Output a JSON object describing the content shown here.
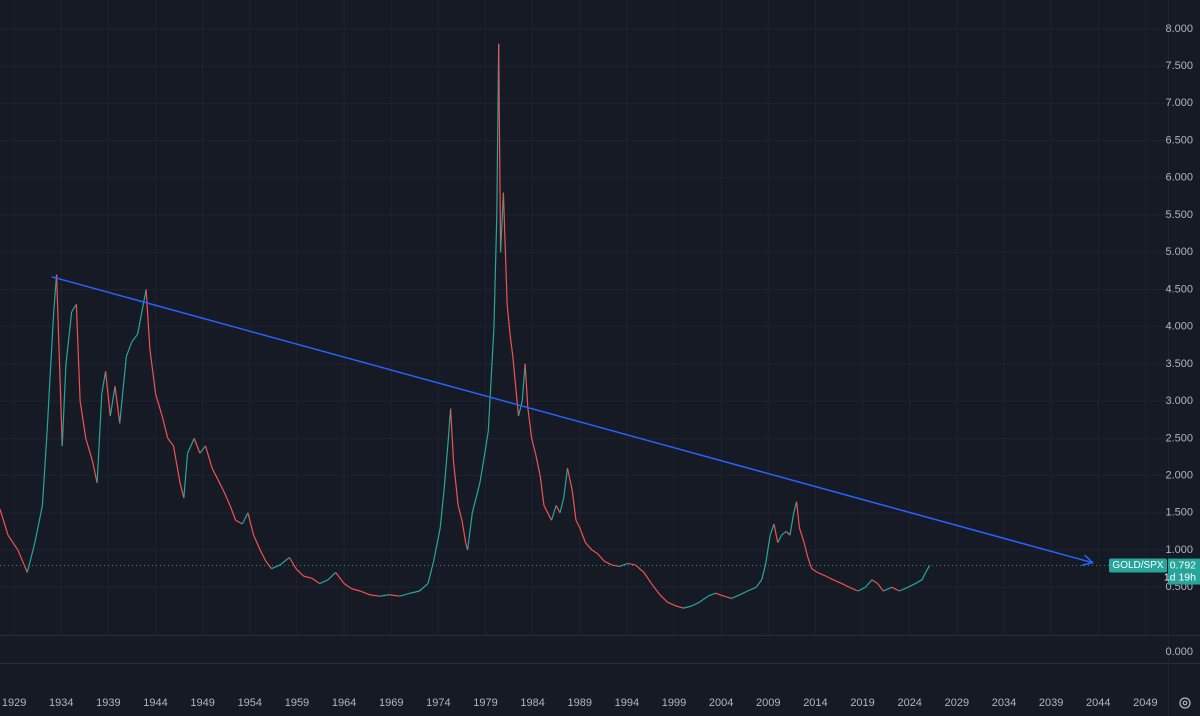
{
  "chart_data": {
    "type": "line",
    "x": [
      1927.5,
      1928.35,
      1929.4,
      1930.4,
      1931.2,
      1932.0,
      1932.5,
      1932.8,
      1933.2,
      1933.5,
      1934.1,
      1934.5,
      1935.1,
      1935.6,
      1936.0,
      1936.6,
      1937.3,
      1937.8,
      1938.3,
      1938.7,
      1939.2,
      1939.7,
      1940.2,
      1940.9,
      1941.5,
      1942.1,
      1942.7,
      1943.0,
      1943.4,
      1944.0,
      1944.7,
      1945.3,
      1945.9,
      1946.6,
      1947.0,
      1947.4,
      1948.1,
      1948.7,
      1949.3,
      1950.0,
      1950.6,
      1951.2,
      1951.9,
      1952.5,
      1953.2,
      1953.8,
      1954.4,
      1955.1,
      1955.7,
      1956.3,
      1957.2,
      1958.2,
      1958.9,
      1959.7,
      1960.6,
      1961.4,
      1962.3,
      1963.1,
      1964.0,
      1964.8,
      1965.7,
      1966.7,
      1967.8,
      1968.8,
      1969.9,
      1971.0,
      1972.0,
      1972.9,
      1973.5,
      1974.2,
      1974.6,
      1975.0,
      1975.3,
      1975.6,
      1976.1,
      1976.5,
      1976.9,
      1977.1,
      1977.6,
      1978.0,
      1978.4,
      1978.8,
      1979.3,
      1979.6,
      1979.9,
      1980.2,
      1980.4,
      1980.6,
      1980.9,
      1981.3,
      1981.6,
      1981.9,
      1982.2,
      1982.5,
      1982.9,
      1983.2,
      1983.5,
      1983.9,
      1984.3,
      1984.8,
      1985.2,
      1985.6,
      1986.0,
      1986.5,
      1986.9,
      1987.3,
      1987.7,
      1988.2,
      1988.6,
      1989.0,
      1989.6,
      1990.3,
      1990.9,
      1991.6,
      1992.4,
      1993.2,
      1994.1,
      1994.9,
      1995.8,
      1996.6,
      1997.5,
      1998.3,
      1999.2,
      2000.0,
      2000.9,
      2001.7,
      2002.6,
      2003.4,
      2004.3,
      2005.1,
      2006.0,
      2006.8,
      2007.7,
      2008.3,
      2008.7,
      2009.2,
      2009.6,
      2010.0,
      2010.4,
      2010.9,
      2011.3,
      2011.7,
      2012.0,
      2012.3,
      2012.8,
      2013.2,
      2013.6,
      2014.2,
      2015.1,
      2015.9,
      2016.8,
      2017.6,
      2018.5,
      2019.3,
      2020.0,
      2020.6,
      2021.2,
      2022.1,
      2022.9,
      2023.8,
      2024.6,
      2025.3,
      2025.7,
      2026.1
    ],
    "series": [
      {
        "name": "GOLD/SPX",
        "up_color": "#26a69a",
        "down_color": "#ef5350",
        "values": [
          1.55,
          1.2,
          1.0,
          0.7,
          1.1,
          1.6,
          2.6,
          3.3,
          4.2,
          4.7,
          2.4,
          3.5,
          4.2,
          4.3,
          3.0,
          2.5,
          2.2,
          1.9,
          3.1,
          3.4,
          2.8,
          3.2,
          2.7,
          3.6,
          3.8,
          3.9,
          4.3,
          4.5,
          3.7,
          3.1,
          2.8,
          2.5,
          2.4,
          1.9,
          1.7,
          2.3,
          2.5,
          2.3,
          2.4,
          2.1,
          1.95,
          1.8,
          1.6,
          1.4,
          1.35,
          1.5,
          1.2,
          1.0,
          0.85,
          0.75,
          0.8,
          0.9,
          0.75,
          0.65,
          0.62,
          0.55,
          0.6,
          0.7,
          0.55,
          0.48,
          0.45,
          0.4,
          0.38,
          0.4,
          0.38,
          0.42,
          0.45,
          0.55,
          0.85,
          1.3,
          1.8,
          2.4,
          2.9,
          2.2,
          1.6,
          1.4,
          1.1,
          1.0,
          1.5,
          1.7,
          1.9,
          2.2,
          2.6,
          3.3,
          4.0,
          5.5,
          7.8,
          5.0,
          5.8,
          4.3,
          3.9,
          3.6,
          3.2,
          2.8,
          3.0,
          3.5,
          2.9,
          2.5,
          2.3,
          2.0,
          1.6,
          1.5,
          1.4,
          1.6,
          1.5,
          1.7,
          2.1,
          1.8,
          1.4,
          1.3,
          1.1,
          1.0,
          0.95,
          0.85,
          0.8,
          0.78,
          0.82,
          0.8,
          0.7,
          0.55,
          0.4,
          0.3,
          0.25,
          0.22,
          0.25,
          0.3,
          0.38,
          0.42,
          0.38,
          0.35,
          0.4,
          0.45,
          0.5,
          0.6,
          0.8,
          1.2,
          1.35,
          1.1,
          1.2,
          1.25,
          1.2,
          1.5,
          1.65,
          1.3,
          1.1,
          0.9,
          0.75,
          0.7,
          0.65,
          0.6,
          0.55,
          0.5,
          0.45,
          0.5,
          0.6,
          0.55,
          0.45,
          0.5,
          0.45,
          0.5,
          0.55,
          0.6,
          0.7,
          0.792
        ]
      }
    ],
    "countdown": "1d 19h",
    "xlim": [
      1927.5,
      2051.4
    ],
    "xticks": [
      1929,
      1934,
      1939,
      1944,
      1949,
      1954,
      1959,
      1964,
      1969,
      1974,
      1979,
      1984,
      1989,
      1994,
      1999,
      2004,
      2009,
      2014,
      2019,
      2024,
      2029,
      2034,
      2039,
      2044,
      2049
    ],
    "ylim": [
      -0.141,
      8.388
    ],
    "yticks": [
      {
        "value": 0.5,
        "label": "0.500"
      },
      {
        "value": 1,
        "label": "1.000"
      },
      {
        "value": 1.5,
        "label": "1.500"
      },
      {
        "value": 2,
        "label": "2.000"
      },
      {
        "value": 2.5,
        "label": "2.500"
      },
      {
        "value": 3,
        "label": "3.000"
      },
      {
        "value": 3.5,
        "label": "3.500"
      },
      {
        "value": 4,
        "label": "4.000"
      },
      {
        "value": 4.5,
        "label": "4.500"
      },
      {
        "value": 5,
        "label": "5.000"
      },
      {
        "value": 5.5,
        "label": "5.500"
      },
      {
        "value": 6,
        "label": "6.000"
      },
      {
        "value": 6.5,
        "label": "6.500"
      },
      {
        "value": 7,
        "label": "7.000"
      },
      {
        "value": 7.5,
        "label": "7.500"
      },
      {
        "value": 8,
        "label": "8.000"
      }
    ],
    "grid": true,
    "trendline": {
      "x": [
        1933.0,
        2043.4
      ],
      "y": [
        4.67,
        0.83
      ],
      "color": "#2962ff"
    }
  },
  "lower_pane": {
    "yticks": [
      {
        "value": 0,
        "label": "0.000"
      }
    ]
  }
}
